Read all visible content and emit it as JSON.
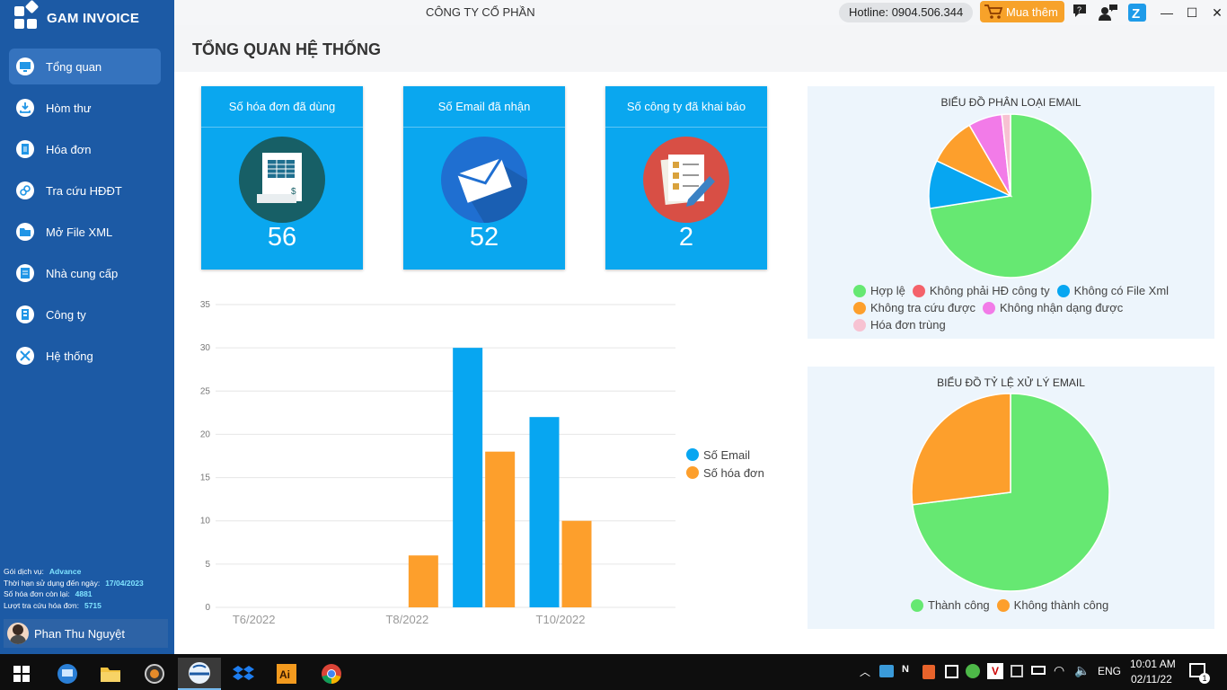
{
  "app": {
    "name": "GAM INVOICE",
    "company": "CÔNG TY CỔ PHẦN",
    "hotline": "Hotline: 0904.506.344",
    "buy_label": "Mua thêm"
  },
  "sidebar": {
    "items": [
      {
        "label": "Tổng quan",
        "icon": "monitor-icon",
        "active": true
      },
      {
        "label": "Hòm thư",
        "icon": "download-icon"
      },
      {
        "label": "Hóa đơn",
        "icon": "document-icon"
      },
      {
        "label": "Tra cứu HĐĐT",
        "icon": "link-icon"
      },
      {
        "label": "Mở File XML",
        "icon": "folder-icon"
      },
      {
        "label": "Nhà cung cấp",
        "icon": "address-book-icon"
      },
      {
        "label": "Công ty",
        "icon": "building-icon"
      },
      {
        "label": "Hệ thống",
        "icon": "tools-icon"
      }
    ],
    "service": {
      "package_label": "Gói dịch vụ:",
      "package_value": "Advance",
      "expiry_label": "Thời hạn sử dụng đến ngày:",
      "expiry_value": "17/04/2023",
      "remaining_label": "Số hóa đơn còn lại:",
      "remaining_value": "4881",
      "lookups_label": "Lượt tra cứu hóa đơn:",
      "lookups_value": "5715"
    },
    "user_name": "Phan Thu Nguyệt"
  },
  "page": {
    "title": "TỔNG QUAN HỆ THỐNG"
  },
  "cards": [
    {
      "title": "Số hóa đơn đã dùng",
      "value": "56",
      "icon": "invoice-icon"
    },
    {
      "title": "Số Email đã nhận",
      "value": "52",
      "icon": "envelope-icon"
    },
    {
      "title": "Số công ty đã khai báo",
      "value": "2",
      "icon": "checklist-icon"
    }
  ],
  "chart_data": [
    {
      "type": "bar",
      "categories": [
        "T6/2022",
        "T7/2022",
        "T8/2022",
        "T9/2022",
        "T10/2022",
        "T11/2022"
      ],
      "x_tick_labels": [
        "T6/2022",
        "T8/2022",
        "T10/2022"
      ],
      "series": [
        {
          "name": "Số Email",
          "color": "#07a6f1",
          "values": [
            0,
            0,
            0,
            30,
            22,
            0
          ]
        },
        {
          "name": "Số hóa đơn",
          "color": "#fd9f2c",
          "values": [
            0,
            0,
            6,
            18,
            10,
            0
          ]
        }
      ],
      "ylim": [
        0,
        35
      ],
      "yticks": [
        0,
        5,
        10,
        15,
        20,
        25,
        30,
        35
      ],
      "grid": true,
      "legend": "right"
    },
    {
      "type": "pie",
      "title": "BIỂU ĐỒ PHÂN LOẠI EMAIL",
      "legend": "bottom",
      "slices": [
        {
          "label": "Hợp lệ",
          "value": 38,
          "color": "#66e872"
        },
        {
          "label": "Không phải HĐ công ty",
          "value": 0,
          "color": "#f4626a"
        },
        {
          "label": "Không có File Xml",
          "value": 5,
          "color": "#07a6f1"
        },
        {
          "label": "Không tra cứu được",
          "value": 5,
          "color": "#fd9f2c"
        },
        {
          "label": "Không nhận dạng được",
          "value": 3.5,
          "color": "#f27be8"
        },
        {
          "label": "Hóa đơn trùng",
          "value": 0.9,
          "color": "#f7c2d2"
        }
      ]
    },
    {
      "type": "pie",
      "title": "BIỂU ĐỒ TỶ LỆ XỬ LÝ EMAIL",
      "legend": "bottom",
      "slices": [
        {
          "label": "Thành công",
          "value": 73,
          "color": "#66e872"
        },
        {
          "label": "Không thành công",
          "value": 27,
          "color": "#fd9f2c"
        }
      ]
    }
  ],
  "taskbar": {
    "apps": [
      "start-icon",
      "remote-desktop-icon",
      "file-explorer-icon",
      "photos-icon",
      "gam-invoice-icon",
      "dropbox-icon",
      "illustrator-icon",
      "chrome-icon"
    ],
    "lang": "ENG",
    "time": "10:01 AM",
    "date": "02/11/22",
    "notifications": "1"
  }
}
